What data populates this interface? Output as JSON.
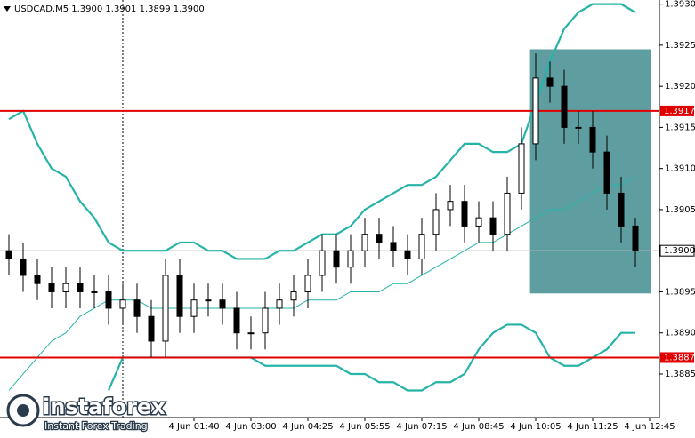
{
  "chart_data": {
    "type": "candlestick",
    "title": "USDCAD,M5  1.3900 1.3901 1.3899 1.3900",
    "xlim": [
      -0.625,
      45.6875
    ],
    "ylim": [
      1.38797,
      1.39305
    ],
    "xticks": [
      {
        "value": 13,
        "label": "4 Jun 01:40"
      },
      {
        "value": 17,
        "label": "4 Jun 03:00"
      },
      {
        "value": 21,
        "label": "4 Jun 04:25"
      },
      {
        "value": 25,
        "label": "4 Jun 05:55"
      },
      {
        "value": 29,
        "label": "4 Jun 07:15"
      },
      {
        "value": 33,
        "label": "4 Jun 08:45"
      },
      {
        "value": 37,
        "label": "4 Jun 10:05"
      },
      {
        "value": 41,
        "label": "4 Jun 11:25"
      },
      {
        "value": 45,
        "label": "4 Jun 12:45"
      }
    ],
    "yticks": [
      {
        "value": 1.393,
        "label": "1.3930"
      },
      {
        "value": 1.3925,
        "label": "1.3925"
      },
      {
        "value": 1.392,
        "label": "1.3920"
      },
      {
        "value": 1.3915,
        "label": "1.3915"
      },
      {
        "value": 1.391,
        "label": "1.3910"
      },
      {
        "value": 1.3905,
        "label": "1.3905"
      },
      {
        "value": 1.39,
        "label": "1.3900"
      },
      {
        "value": 1.3895,
        "label": "1.3895"
      },
      {
        "value": 1.389,
        "label": "1.3890"
      },
      {
        "value": 1.3885,
        "label": "1.3885"
      }
    ],
    "open": [
      1.39,
      1.3899,
      1.3897,
      1.3896,
      1.3895,
      1.3896,
      1.3895,
      1.3895,
      1.3893,
      1.3894,
      1.3892,
      1.3889,
      1.3897,
      1.3892,
      1.3894,
      1.3894,
      1.3893,
      1.389,
      1.389,
      1.3893,
      1.3894,
      1.3895,
      1.3897,
      1.39,
      1.3898,
      1.39,
      1.3902,
      1.3901,
      1.39,
      1.3899,
      1.3902,
      1.3905,
      1.3906,
      1.3903,
      1.3904,
      1.3902,
      1.3907,
      1.3913,
      1.3921,
      1.392,
      1.3915,
      1.3915,
      1.3912,
      1.3907,
      1.3903
    ],
    "high": [
      1.3902,
      1.3901,
      1.3899,
      1.3898,
      1.3898,
      1.3898,
      1.3897,
      1.3897,
      1.3896,
      1.3896,
      1.3894,
      1.3899,
      1.3899,
      1.3896,
      1.3896,
      1.3896,
      1.3895,
      1.3892,
      1.3895,
      1.3896,
      1.3897,
      1.3899,
      1.3902,
      1.3902,
      1.3902,
      1.3904,
      1.3904,
      1.3903,
      1.3902,
      1.3904,
      1.3907,
      1.3908,
      1.3908,
      1.3906,
      1.3906,
      1.3909,
      1.3915,
      1.3924,
      1.3923,
      1.3922,
      1.3917,
      1.3917,
      1.3914,
      1.3909,
      1.3904
    ],
    "low": [
      1.3897,
      1.3895,
      1.3894,
      1.3893,
      1.3893,
      1.3893,
      1.3893,
      1.3891,
      1.3891,
      1.389,
      1.3887,
      1.3887,
      1.389,
      1.389,
      1.3892,
      1.3891,
      1.3888,
      1.3888,
      1.3888,
      1.3891,
      1.3892,
      1.3893,
      1.3895,
      1.3896,
      1.3896,
      1.3898,
      1.3899,
      1.3898,
      1.3897,
      1.3897,
      1.39,
      1.3903,
      1.3901,
      1.3901,
      1.39,
      1.39,
      1.3905,
      1.3911,
      1.3918,
      1.3913,
      1.3913,
      1.391,
      1.3905,
      1.3901,
      1.3898
    ],
    "close": [
      1.3899,
      1.3897,
      1.3896,
      1.3895,
      1.3896,
      1.3895,
      1.3895,
      1.3893,
      1.3894,
      1.3892,
      1.3889,
      1.3897,
      1.3892,
      1.3894,
      1.3894,
      1.3893,
      1.389,
      1.389,
      1.3893,
      1.3894,
      1.3895,
      1.3897,
      1.39,
      1.3898,
      1.39,
      1.3902,
      1.3901,
      1.39,
      1.3899,
      1.3902,
      1.3905,
      1.3906,
      1.3903,
      1.3904,
      1.3902,
      1.3907,
      1.3913,
      1.3921,
      1.392,
      1.3915,
      1.3915,
      1.3912,
      1.3907,
      1.3903,
      1.39
    ],
    "bands": {
      "color": "#26b3a8",
      "upper": [
        1.3916,
        1.3917,
        1.3913,
        1.391,
        1.3909,
        1.3906,
        1.3904,
        1.3901,
        1.39,
        1.39,
        1.39,
        1.39,
        1.3901,
        1.3901,
        1.39,
        1.39,
        1.3899,
        1.3899,
        1.3899,
        1.39,
        1.39,
        1.3901,
        1.3902,
        1.3902,
        1.3903,
        1.3905,
        1.3906,
        1.3907,
        1.3908,
        1.3908,
        1.3909,
        1.3911,
        1.3913,
        1.3913,
        1.3912,
        1.3912,
        1.3913,
        1.3918,
        1.3923,
        1.3927,
        1.3929,
        1.393,
        1.393,
        1.393,
        1.3929
      ],
      "middle": [
        1.3883,
        1.3885,
        1.3887,
        1.3889,
        1.389,
        1.3892,
        1.3893,
        1.3894,
        1.3894,
        1.3894,
        1.3893,
        1.3893,
        1.3893,
        1.3893,
        1.3893,
        1.3893,
        1.3893,
        1.3893,
        1.3893,
        1.3893,
        1.3893,
        1.3894,
        1.3894,
        1.3894,
        1.3895,
        1.3895,
        1.3895,
        1.3896,
        1.3896,
        1.3897,
        1.3898,
        1.3899,
        1.39,
        1.3901,
        1.3901,
        1.3902,
        1.3903,
        1.3904,
        1.3905,
        1.3905,
        1.3906,
        1.3907,
        1.3908,
        1.3908,
        1.3909
      ],
      "lower": [
        null,
        null,
        null,
        null,
        null,
        null,
        null,
        1.3883,
        1.3887,
        1.3887,
        1.3887,
        1.3887,
        1.3887,
        1.3887,
        1.3887,
        1.3887,
        1.3887,
        1.3887,
        1.3886,
        1.3886,
        1.3886,
        1.3886,
        1.3886,
        1.3886,
        1.3885,
        1.3885,
        1.3884,
        1.3884,
        1.3883,
        1.3883,
        1.3884,
        1.3884,
        1.3885,
        1.3888,
        1.389,
        1.3891,
        1.3891,
        1.389,
        1.3887,
        1.3886,
        1.3886,
        1.3887,
        1.3888,
        1.389,
        1.389
      ]
    },
    "levels": [
      {
        "value": 1.3917,
        "label": "1.3917",
        "color": "#e00000"
      },
      {
        "value": 1.3887,
        "label": "1.3887",
        "color": "#e00000"
      }
    ],
    "current": {
      "value": 1.39,
      "label": "1.3900"
    },
    "cursor_x": 8,
    "zone": {
      "x": [
        36.6,
        45.1
      ],
      "y": [
        1.39245,
        1.38948
      ],
      "color": "#5f9ea0"
    },
    "watermark": {
      "brand": "instaforex",
      "tagline": "Instant Forex Trading"
    }
  }
}
